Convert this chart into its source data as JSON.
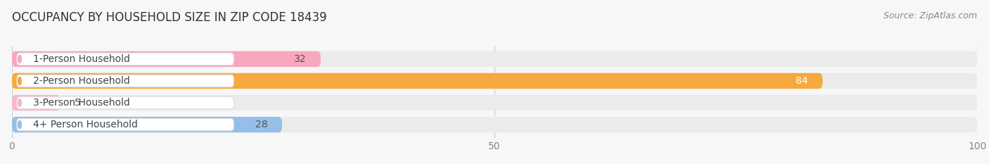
{
  "title": "OCCUPANCY BY HOUSEHOLD SIZE IN ZIP CODE 18439",
  "source": "Source: ZipAtlas.com",
  "categories": [
    "1-Person Household",
    "2-Person Household",
    "3-Person Household",
    "4+ Person Household"
  ],
  "values": [
    32,
    84,
    5,
    28
  ],
  "bar_colors": [
    "#f7a7be",
    "#f5a93f",
    "#f5b8c8",
    "#95bfe8"
  ],
  "bar_bg_color": "#ebebeb",
  "value_label_colors": [
    "#555555",
    "#ffffff",
    "#555555",
    "#555555"
  ],
  "xlim": [
    0,
    100
  ],
  "xticks": [
    0,
    50,
    100
  ],
  "figsize": [
    14.06,
    2.33
  ],
  "dpi": 100,
  "title_fontsize": 12,
  "bar_label_fontsize": 10,
  "value_fontsize": 10,
  "axis_fontsize": 10,
  "source_fontsize": 9
}
